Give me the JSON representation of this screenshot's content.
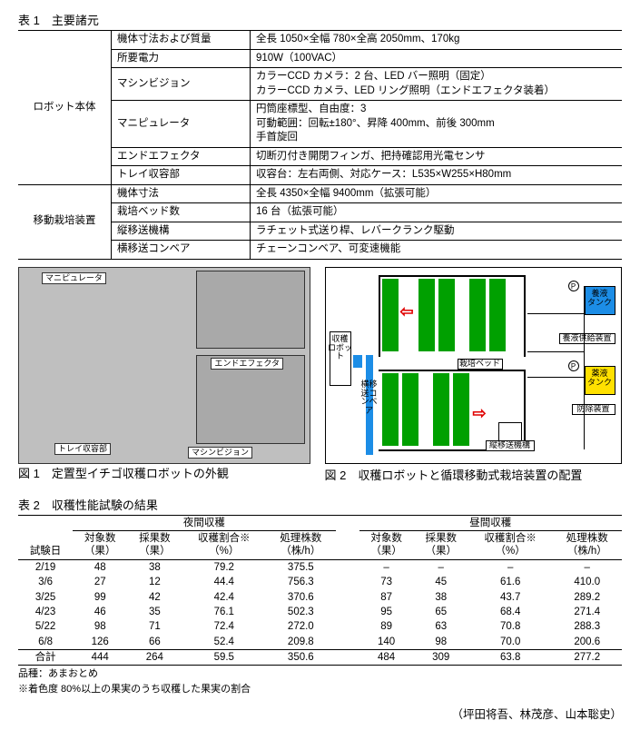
{
  "table1": {
    "title": "表 1　主要諸元",
    "groups": [
      {
        "group": "ロボット本体",
        "rows": [
          {
            "item": "機体寸法および質量",
            "value": "全長 1050×全幅 780×全高 2050mm、170kg"
          },
          {
            "item": "所要電力",
            "value": "910W（100VAC）"
          },
          {
            "item": "マシンビジョン",
            "value": "カラーCCD カメラ：2 台、LED バー照明（固定）\nカラーCCD カメラ、LED リング照明（エンドエフェクタ装着）"
          },
          {
            "item": "マニピュレータ",
            "value": "円筒座標型、自由度：3\n可動範囲：回転±180°、昇降 400mm、前後 300mm\n手首旋回"
          },
          {
            "item": "エンドエフェクタ",
            "value": "切断刃付き開閉フィンガ、把持確認用光電センサ"
          },
          {
            "item": "トレイ収容部",
            "value": "収容台：左右両側、対応ケース：L535×W255×H80mm"
          }
        ]
      },
      {
        "group": "移動栽培装置",
        "rows": [
          {
            "item": "機体寸法",
            "value": "全長 4350×全幅 9400mm（拡張可能）"
          },
          {
            "item": "栽培ベッド数",
            "value": "16 台（拡張可能）"
          },
          {
            "item": "縦移送機構",
            "value": "ラチェット式送り桿、レバークランク駆動"
          },
          {
            "item": "横移送コンベア",
            "value": "チェーンコンベア、可変速機能"
          }
        ]
      }
    ]
  },
  "fig1": {
    "caption": "図 1　定置型イチゴ収穫ロボットの外観",
    "labels": {
      "manipulator": "マニピュレータ",
      "tray": "トレイ収容部",
      "vision": "マシンビジョン",
      "effector": "エンドエフェクタ"
    }
  },
  "fig2": {
    "caption": "図 2　収穫ロボットと循環移動式栽培装置の配置",
    "labels": {
      "robot": "収穫\nロボット",
      "bed": "栽培ベッド",
      "hconv": "横移\n送コ\nンベ\nア",
      "vmech": "縦移送機構",
      "nutr_tank": "養液\nタンク",
      "chem_tank": "薬液\nタンク",
      "nutr_supply": "養液供給装置",
      "sprayer": "防除装置",
      "p": "P"
    },
    "colors": {
      "bed": "#00a000",
      "robot_base": "#1c8de6",
      "nutr_tank": "#1c8de6",
      "chem_tank": "#ffe000",
      "arrow": "#e00000"
    }
  },
  "table2": {
    "title": "表 2　収穫性能試験の結果",
    "headers": {
      "trial_date": "試験日",
      "night": "夜間収穫",
      "day": "昼間収穫",
      "targets": "対象数\n（果）",
      "picked": "採果数\n（果）",
      "ratio": "収穫割合※\n（%）",
      "throughput": "処理株数\n（株/h）"
    },
    "rows": [
      {
        "d": "2/19",
        "n": [
          "48",
          "38",
          "79.2",
          "375.5"
        ],
        "y": [
          "–",
          "–",
          "–",
          "–"
        ]
      },
      {
        "d": "3/6",
        "n": [
          "27",
          "12",
          "44.4",
          "756.3"
        ],
        "y": [
          "73",
          "45",
          "61.6",
          "410.0"
        ]
      },
      {
        "d": "3/25",
        "n": [
          "99",
          "42",
          "42.4",
          "370.6"
        ],
        "y": [
          "87",
          "38",
          "43.7",
          "289.2"
        ]
      },
      {
        "d": "4/23",
        "n": [
          "46",
          "35",
          "76.1",
          "502.3"
        ],
        "y": [
          "95",
          "65",
          "68.4",
          "271.4"
        ]
      },
      {
        "d": "5/22",
        "n": [
          "98",
          "71",
          "72.4",
          "272.0"
        ],
        "y": [
          "89",
          "63",
          "70.8",
          "288.3"
        ]
      },
      {
        "d": "6/8",
        "n": [
          "126",
          "66",
          "52.4",
          "209.8"
        ],
        "y": [
          "140",
          "98",
          "70.0",
          "200.6"
        ]
      }
    ],
    "sum": {
      "d": "合計",
      "n": [
        "444",
        "264",
        "59.5",
        "350.6"
      ],
      "y": [
        "484",
        "309",
        "63.8",
        "277.2"
      ]
    },
    "footnote1": "品種：あまおとめ",
    "footnote2": "※着色度 80%以上の果実のうち収穫した果実の割合"
  },
  "authors": "（坪田将吾、林茂彦、山本聡史）"
}
